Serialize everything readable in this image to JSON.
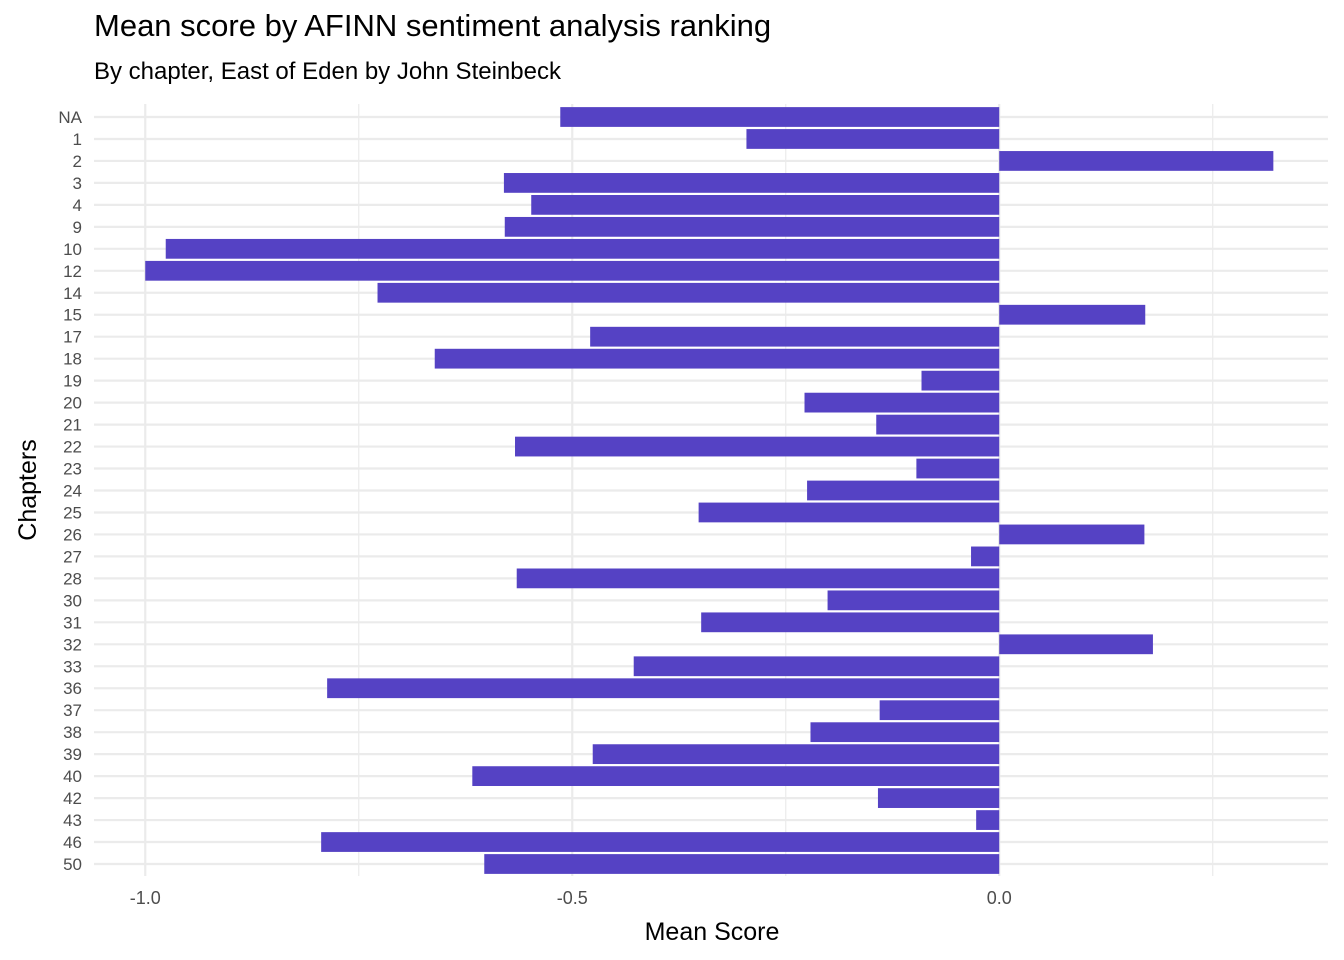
{
  "chart_data": {
    "type": "bar",
    "orientation": "horizontal",
    "title": "Mean score by AFINN sentiment analysis ranking",
    "subtitle": "By chapter, East of Eden by John Steinbeck",
    "xlabel": "Mean Score",
    "ylabel": "Chapters",
    "categories": [
      "NA",
      "1",
      "2",
      "3",
      "4",
      "9",
      "10",
      "12",
      "14",
      "15",
      "17",
      "18",
      "19",
      "20",
      "21",
      "22",
      "23",
      "24",
      "25",
      "26",
      "27",
      "28",
      "30",
      "31",
      "32",
      "33",
      "36",
      "37",
      "38",
      "39",
      "40",
      "42",
      "43",
      "46",
      "50"
    ],
    "values": [
      -0.514,
      -0.296,
      0.321,
      -0.58,
      -0.548,
      -0.579,
      -0.976,
      -1.0,
      -0.728,
      0.171,
      -0.479,
      -0.661,
      -0.091,
      -0.228,
      -0.144,
      -0.567,
      -0.097,
      -0.225,
      -0.352,
      0.17,
      -0.033,
      -0.565,
      -0.201,
      -0.349,
      0.18,
      -0.428,
      -0.787,
      -0.14,
      -0.221,
      -0.476,
      -0.617,
      -0.142,
      -0.027,
      -0.794,
      -0.603
    ],
    "xlim": [
      -1.06,
      0.385
    ],
    "xticks": [
      -1.0,
      -0.5,
      0.0
    ],
    "xtick_labels": [
      "-1.0",
      "-0.5",
      "0.0"
    ],
    "grid": true,
    "legend": "none",
    "bar_color": "#5542c4",
    "grid_color": "#ebebeb"
  }
}
